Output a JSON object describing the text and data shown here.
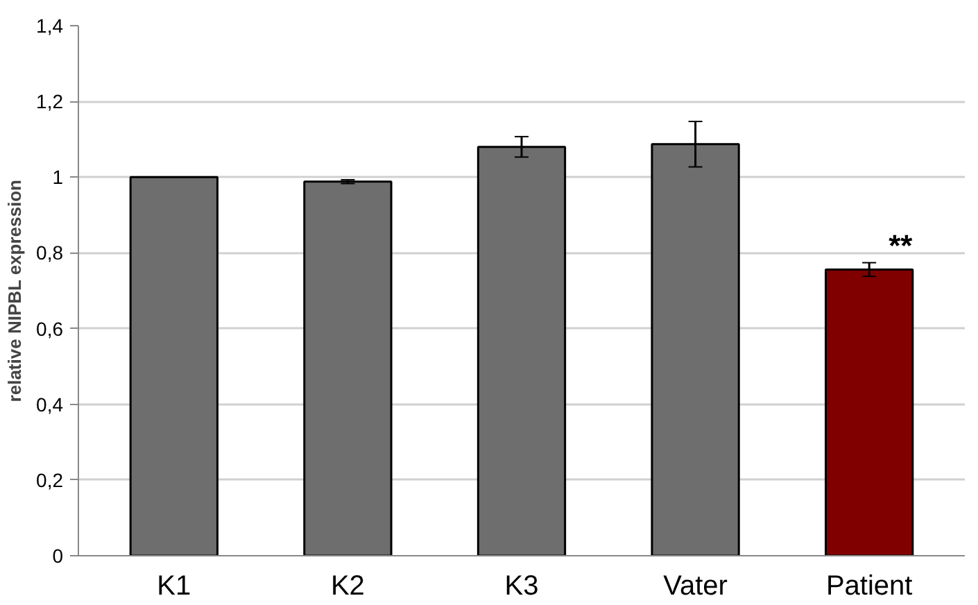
{
  "chart_data": {
    "type": "bar",
    "ylabel": "relative NIPBL expression",
    "categories": [
      "K1",
      "K2",
      "K3",
      "Vater",
      "Patient"
    ],
    "values": [
      1.0,
      0.988,
      1.08,
      1.087,
      0.756
    ],
    "errors": [
      null,
      0.005,
      0.027,
      0.06,
      0.018
    ],
    "colors": [
      "#6e6e6e",
      "#6e6e6e",
      "#6e6e6e",
      "#6e6e6e",
      "#800000"
    ],
    "ylim": [
      0,
      1.4
    ],
    "yticks": [
      {
        "value": 0,
        "label": "0"
      },
      {
        "value": 0.2,
        "label": "0,2"
      },
      {
        "value": 0.4,
        "label": "0,4"
      },
      {
        "value": 0.6,
        "label": "0,6"
      },
      {
        "value": 0.8,
        "label": "0,8"
      },
      {
        "value": 1,
        "label": "1"
      },
      {
        "value": 1.2,
        "label": "1,2"
      },
      {
        "value": 1.4,
        "label": "1,4"
      }
    ],
    "grid": "y",
    "annotations": [
      {
        "text": "**",
        "x": "Patient",
        "y": 0.774
      }
    ]
  }
}
